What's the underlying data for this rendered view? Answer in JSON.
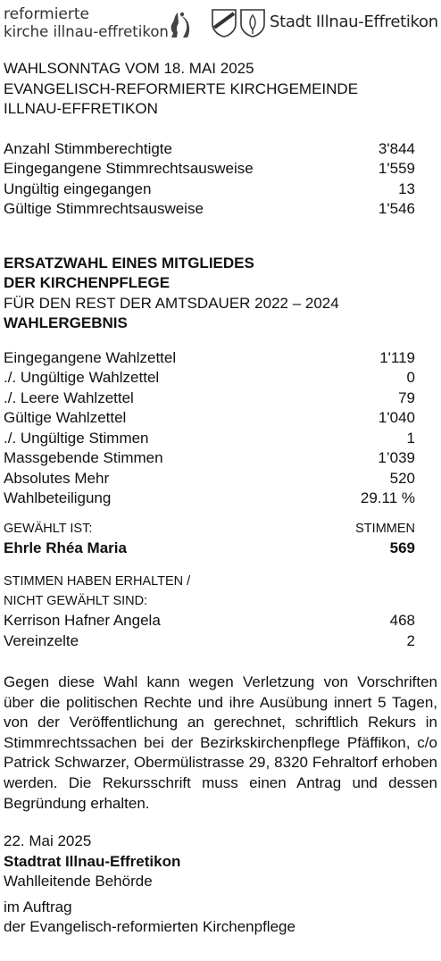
{
  "header": {
    "church_logo_line1": "reformierte",
    "church_logo_line2": "kirche illnau-effretikon",
    "city_name": "Stadt Illnau-Effretikon"
  },
  "intro": {
    "line1": "WAHLSONNTAG VOM 18. MAI 2025",
    "line2": "EVANGELISCH-REFORMIERTE KIRCHGEMEINDE",
    "line3": "ILLNAU-EFFRETIKON"
  },
  "stats": [
    {
      "label": "Anzahl Stimmberechtigte",
      "value": "3'844"
    },
    {
      "label": "Eingegangene Stimmrechtsausweise",
      "value": "1'559"
    },
    {
      "label": "Ungültig eingegangen",
      "value": "13"
    },
    {
      "label": "Gültige Stimmrechtsausweise",
      "value": "1'546"
    }
  ],
  "election": {
    "title1": "ERSATZWAHL EINES MITGLIEDES",
    "title2": "DER KIRCHENPFLEGE",
    "subtitle": "FÜR DEN REST DER AMTSDAUER 2022 – 2024",
    "result_heading": "WAHLERGEBNIS"
  },
  "results": [
    {
      "label": "Eingegangene Wahlzettel",
      "value": "1'119"
    },
    {
      "label": "./. Ungültige Wahlzettel",
      "value": "0"
    },
    {
      "label": "./. Leere Wahlzettel",
      "value": "79"
    },
    {
      "label": "Gültige Wahlzettel",
      "value": "1'040"
    },
    {
      "label": "./. Ungültige Stimmen",
      "value": "1"
    },
    {
      "label": "Massgebende Stimmen",
      "value": "1’039"
    },
    {
      "label": "Absolutes Mehr",
      "value": "520"
    },
    {
      "label": "Wahlbeteiligung",
      "value": "29.11 %"
    }
  ],
  "elected": {
    "heading_left": "GEWÄHLT IST:",
    "heading_right": "STIMMEN",
    "name": "Ehrle Rhéa Maria",
    "votes": "569"
  },
  "not_elected": {
    "heading1": "STIMMEN HABEN ERHALTEN /",
    "heading2": "NICHT GEWÄHLT SIND:",
    "rows": [
      {
        "label": "Kerrison Hafner Angela",
        "value": "468"
      },
      {
        "label": "Vereinzelte",
        "value": "2"
      }
    ]
  },
  "legal_notice": "Gegen diese Wahl kann wegen Verletzung von Vorschriften über die politischen Rechte und ihre Ausübung innert 5 Tagen, von der Veröffentlichung an gerechnet, schriftlich Rekurs in Stimmrechtssachen bei der Bezirkskirchenpflege Pfäffikon, c/o Patrick Schwarzer, Obermülistrasse 29, 8320 Fehraltorf erhoben werden. Die Rekursschrift muss einen Antrag und dessen Begründung erhalten.",
  "footer": {
    "date": "22. Mai 2025",
    "authority": "Stadtrat Illnau-Effretikon",
    "role": "Wahlleitende Behörde",
    "mandate1": "im Auftrag",
    "mandate2": "der Evangelisch-reformierten Kirchenpflege"
  }
}
